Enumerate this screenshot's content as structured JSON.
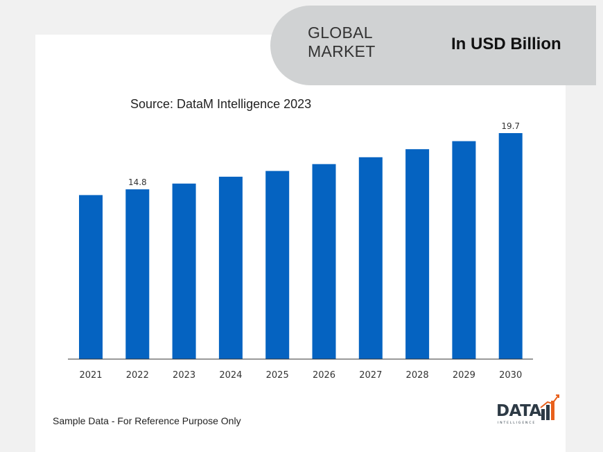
{
  "header": {
    "title": "GLOBAL\nMARKET",
    "units": "In USD Billion"
  },
  "source": "Source: DataM Intelligence 2023",
  "footnote": "Sample Data - For Reference Purpose Only",
  "logo": {
    "word": "DATA",
    "sub": "INTELLIGENCE"
  },
  "colors": {
    "bar": "#0563c1",
    "header_band": "#d0d2d3",
    "logo_accent": "#e8601c"
  },
  "chart_data": {
    "type": "bar",
    "categories": [
      "2021",
      "2022",
      "2023",
      "2024",
      "2025",
      "2026",
      "2027",
      "2028",
      "2029",
      "2030"
    ],
    "values": [
      14.3,
      14.8,
      15.3,
      15.9,
      16.4,
      17.0,
      17.6,
      18.3,
      19.0,
      19.7
    ],
    "data_labels": [
      {
        "index": 1,
        "text": "14.8"
      },
      {
        "index": 9,
        "text": "19.7"
      }
    ],
    "ylim": [
      0,
      19.7
    ],
    "grid": false,
    "legend": "none"
  }
}
